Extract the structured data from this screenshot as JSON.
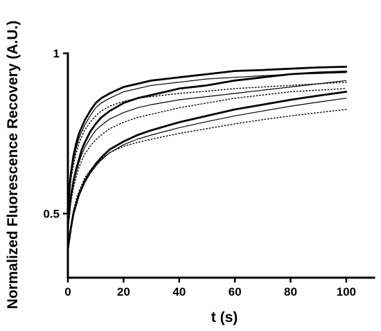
{
  "chart_data": {
    "type": "line",
    "title": "",
    "xlabel": "t (s)",
    "ylabel": "Normalized Fluorescence Recovery (A.U.)",
    "xlim": [
      0,
      110
    ],
    "ylim": [
      0.3,
      1.0
    ],
    "xticks": [
      0,
      20,
      40,
      60,
      80,
      100
    ],
    "xtick_labels": [
      "0",
      "20",
      "40",
      "60",
      "80",
      "100"
    ],
    "yticks": [
      0.5,
      1.0
    ],
    "ytick_labels": [
      "0.5",
      "1"
    ],
    "grid": false,
    "legend": "none",
    "series": [
      {
        "style": "thick",
        "x": [
          0,
          1,
          2,
          3,
          4,
          5,
          6,
          8,
          10,
          12,
          15,
          20,
          25,
          30,
          40,
          50,
          60,
          70,
          80,
          90,
          100
        ],
        "y": [
          0.52,
          0.62,
          0.68,
          0.72,
          0.75,
          0.77,
          0.79,
          0.82,
          0.845,
          0.86,
          0.875,
          0.895,
          0.905,
          0.915,
          0.925,
          0.935,
          0.945,
          0.948,
          0.952,
          0.956,
          0.958
        ]
      },
      {
        "style": "thin",
        "x": [
          0,
          1,
          2,
          3,
          4,
          5,
          6,
          8,
          10,
          12,
          15,
          20,
          25,
          30,
          40,
          50,
          60,
          70,
          80,
          90,
          100
        ],
        "y": [
          0.52,
          0.61,
          0.665,
          0.705,
          0.735,
          0.755,
          0.775,
          0.805,
          0.83,
          0.845,
          0.86,
          0.88,
          0.89,
          0.9,
          0.91,
          0.92,
          0.925,
          0.93,
          0.935,
          0.937,
          0.94
        ]
      },
      {
        "style": "dotted",
        "x": [
          0,
          1,
          2,
          3,
          4,
          5,
          6,
          8,
          10,
          12,
          15,
          20,
          25,
          30,
          40,
          50,
          60,
          70,
          80,
          90,
          100
        ],
        "y": [
          0.5,
          0.6,
          0.65,
          0.69,
          0.72,
          0.74,
          0.76,
          0.785,
          0.805,
          0.82,
          0.835,
          0.85,
          0.86,
          0.865,
          0.875,
          0.882,
          0.89,
          0.895,
          0.9,
          0.905,
          0.91
        ]
      },
      {
        "style": "thick",
        "x": [
          0,
          1,
          2,
          3,
          4,
          5,
          6,
          8,
          10,
          12,
          15,
          20,
          25,
          30,
          40,
          50,
          60,
          70,
          80,
          90,
          100
        ],
        "y": [
          0.46,
          0.55,
          0.6,
          0.64,
          0.67,
          0.7,
          0.72,
          0.755,
          0.78,
          0.8,
          0.82,
          0.845,
          0.86,
          0.87,
          0.89,
          0.9,
          0.915,
          0.925,
          0.935,
          0.94,
          0.943
        ]
      },
      {
        "style": "thin",
        "x": [
          0,
          1,
          2,
          3,
          4,
          5,
          6,
          8,
          10,
          12,
          15,
          20,
          25,
          30,
          40,
          50,
          60,
          70,
          80,
          90,
          100
        ],
        "y": [
          0.46,
          0.545,
          0.595,
          0.63,
          0.66,
          0.685,
          0.705,
          0.735,
          0.76,
          0.775,
          0.795,
          0.815,
          0.83,
          0.84,
          0.855,
          0.865,
          0.875,
          0.885,
          0.895,
          0.905,
          0.915
        ]
      },
      {
        "style": "dotted",
        "x": [
          0,
          1,
          2,
          3,
          4,
          5,
          6,
          8,
          10,
          12,
          15,
          20,
          25,
          30,
          40,
          50,
          60,
          70,
          80,
          90,
          100
        ],
        "y": [
          0.44,
          0.53,
          0.58,
          0.615,
          0.645,
          0.665,
          0.685,
          0.71,
          0.73,
          0.745,
          0.765,
          0.785,
          0.8,
          0.81,
          0.83,
          0.845,
          0.86,
          0.87,
          0.88,
          0.885,
          0.89
        ]
      },
      {
        "style": "thick",
        "x": [
          0,
          1,
          2,
          3,
          4,
          5,
          6,
          8,
          10,
          12,
          15,
          20,
          25,
          30,
          40,
          50,
          60,
          70,
          80,
          90,
          100
        ],
        "y": [
          0.39,
          0.45,
          0.5,
          0.53,
          0.56,
          0.58,
          0.6,
          0.63,
          0.655,
          0.675,
          0.7,
          0.725,
          0.745,
          0.76,
          0.785,
          0.805,
          0.825,
          0.84,
          0.855,
          0.868,
          0.88
        ]
      },
      {
        "style": "thin",
        "x": [
          0,
          1,
          2,
          3,
          4,
          5,
          6,
          8,
          10,
          12,
          15,
          20,
          25,
          30,
          40,
          50,
          60,
          70,
          80,
          90,
          100
        ],
        "y": [
          0.39,
          0.45,
          0.5,
          0.53,
          0.555,
          0.575,
          0.595,
          0.625,
          0.648,
          0.667,
          0.69,
          0.715,
          0.732,
          0.745,
          0.768,
          0.787,
          0.805,
          0.82,
          0.835,
          0.848,
          0.86
        ]
      },
      {
        "style": "dotted",
        "x": [
          0,
          1,
          2,
          3,
          4,
          5,
          6,
          8,
          10,
          12,
          15,
          20,
          25,
          30,
          40,
          50,
          60,
          70,
          80,
          90,
          100
        ],
        "y": [
          0.4,
          0.46,
          0.51,
          0.545,
          0.57,
          0.59,
          0.61,
          0.635,
          0.655,
          0.67,
          0.69,
          0.71,
          0.722,
          0.732,
          0.75,
          0.765,
          0.78,
          0.793,
          0.805,
          0.815,
          0.825
        ]
      }
    ]
  }
}
